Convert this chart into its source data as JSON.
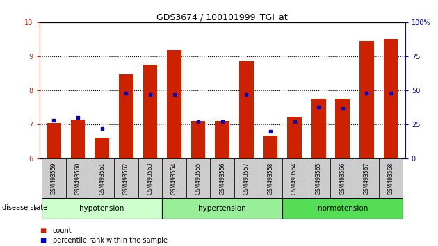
{
  "title": "GDS3674 / 100101999_TGI_at",
  "samples": [
    "GSM493559",
    "GSM493560",
    "GSM493561",
    "GSM493562",
    "GSM493563",
    "GSM493554",
    "GSM493555",
    "GSM493556",
    "GSM493557",
    "GSM493558",
    "GSM493564",
    "GSM493565",
    "GSM493566",
    "GSM493567",
    "GSM493568"
  ],
  "counts": [
    7.05,
    7.15,
    6.62,
    8.47,
    8.75,
    9.18,
    7.1,
    7.1,
    8.85,
    6.68,
    7.22,
    7.75,
    7.75,
    9.45,
    9.5
  ],
  "percentiles": [
    28,
    30,
    22,
    48,
    47,
    47,
    27,
    27,
    47,
    20,
    27,
    38,
    37,
    48,
    48
  ],
  "groups": [
    {
      "label": "hypotension",
      "start": 0,
      "end": 5,
      "color": "#ccffcc"
    },
    {
      "label": "hypertension",
      "start": 5,
      "end": 10,
      "color": "#99ee99"
    },
    {
      "label": "normotension",
      "start": 10,
      "end": 15,
      "color": "#55dd55"
    }
  ],
  "ylim_left": [
    6,
    10
  ],
  "ylim_right": [
    0,
    100
  ],
  "bar_color": "#cc2200",
  "dot_color": "#0000cc",
  "bar_width": 0.6,
  "label_box_color": "#cccccc",
  "tick_color_left": "#cc2200",
  "tick_color_right": "#0000cc",
  "disease_state_label": "disease state",
  "legend_count_label": "count",
  "legend_percentile_label": "percentile rank within the sample"
}
